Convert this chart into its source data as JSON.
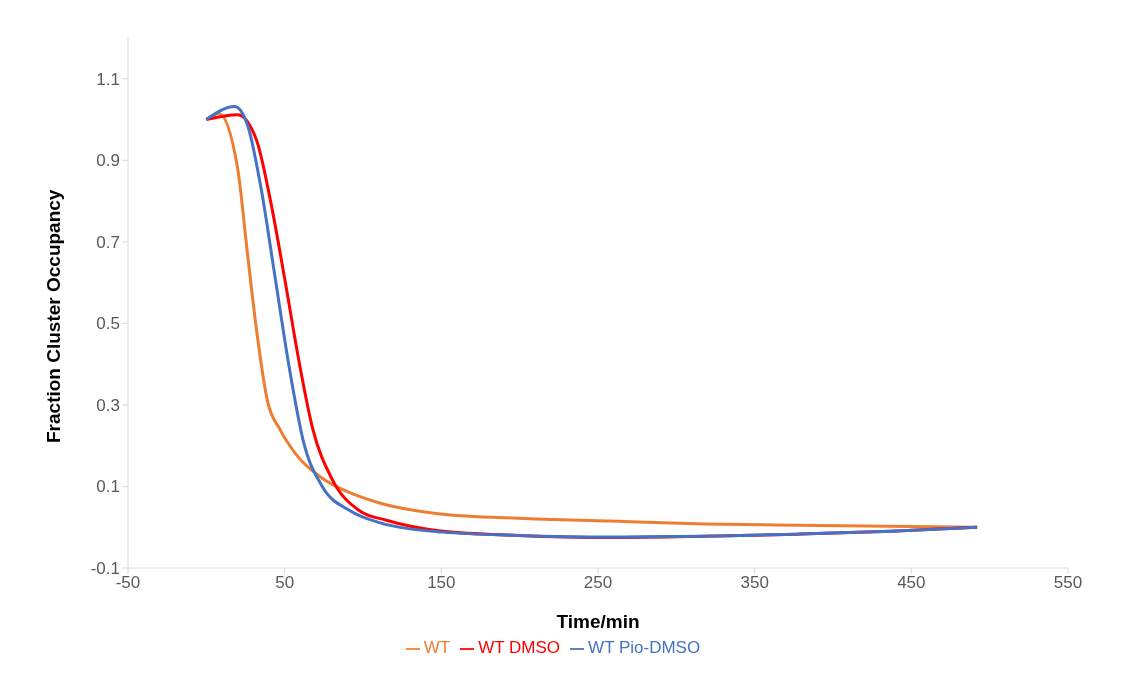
{
  "chart_data": {
    "type": "line",
    "xlabel": "Time/min",
    "ylabel": "Fraction Cluster Occupancy",
    "xlim": [
      -50,
      550
    ],
    "xticks": [
      -50,
      50,
      150,
      250,
      350,
      450,
      550
    ],
    "ylim": [
      -0.1,
      1.2
    ],
    "yticks": [
      -0.1,
      0.1,
      0.3,
      0.5,
      0.7,
      0.9,
      1.1
    ],
    "legend": "bottom",
    "series": [
      {
        "name": "WT",
        "color": "#ed7d31",
        "x": [
          0,
          8,
          20,
          26,
          32,
          39,
          47,
          57,
          74,
          92,
          110,
          151,
          199,
          258,
          318,
          377,
          492
        ],
        "values": [
          1.0,
          1.015,
          0.88,
          0.68,
          0.485,
          0.31,
          0.24,
          0.18,
          0.12,
          0.084,
          0.06,
          0.032,
          0.022,
          0.015,
          0.008,
          0.005,
          0.0
        ]
      },
      {
        "name": "WT DMSO",
        "color": "#ff0000",
        "x": [
          0,
          20,
          32,
          41,
          50,
          59,
          68,
          80,
          98,
          115,
          151,
          199,
          258,
          318,
          377,
          437,
          492
        ],
        "values": [
          1.0,
          1.012,
          0.95,
          0.8,
          0.61,
          0.41,
          0.24,
          0.12,
          0.04,
          0.017,
          -0.01,
          -0.02,
          -0.025,
          -0.022,
          -0.017,
          -0.01,
          0.0
        ]
      },
      {
        "name": "WT Pio-DMSO",
        "color": "#4472c4",
        "x": [
          0,
          18,
          26,
          35,
          44,
          53,
          62,
          74,
          92,
          110,
          151,
          199,
          258,
          318,
          377,
          437,
          492
        ],
        "values": [
          1.0,
          1.032,
          0.99,
          0.83,
          0.61,
          0.39,
          0.21,
          0.1,
          0.04,
          0.012,
          -0.012,
          -0.02,
          -0.024,
          -0.022,
          -0.017,
          -0.01,
          0.0
        ]
      }
    ]
  }
}
